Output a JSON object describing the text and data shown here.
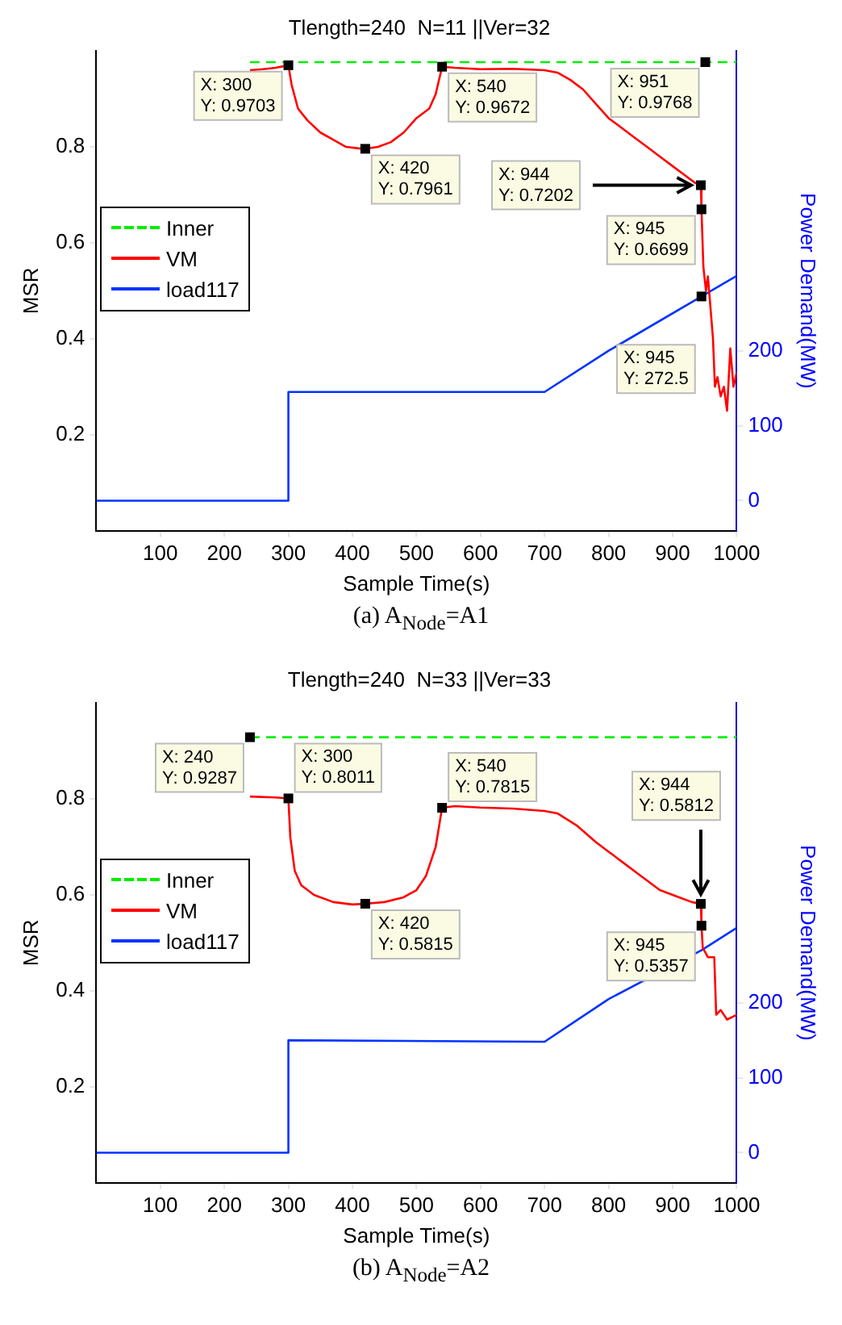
{
  "chart_data": [
    {
      "type": "line",
      "title": "Tlength=240  N=11 ||Ver=32",
      "xlabel": "Sample Time(s)",
      "ylabel": "MSR",
      "y2label": "Power Demand(MW)",
      "xlim": [
        0,
        1000
      ],
      "xticks": [
        100,
        200,
        300,
        400,
        500,
        600,
        700,
        800,
        900,
        1000
      ],
      "ylim": [
        0,
        1
      ],
      "yticks": [
        0.2,
        0.4,
        0.6,
        0.8
      ],
      "y2lim": [
        -40,
        600
      ],
      "y2ticks": [
        0,
        100,
        200
      ],
      "legend": "left",
      "series": [
        {
          "name": "Inner",
          "color": "#00ee00",
          "line_style": "dashed",
          "x": [
            240,
            1000
          ],
          "values": [
            0.9768,
            0.9768
          ]
        },
        {
          "name": "VM",
          "color": "#ff0000",
          "x": [
            240,
            260,
            280,
            300,
            305,
            315,
            330,
            350,
            370,
            390,
            410,
            420,
            440,
            460,
            480,
            500,
            520,
            530,
            540,
            560,
            600,
            650,
            700,
            720,
            740,
            760,
            780,
            800,
            820,
            840,
            860,
            880,
            900,
            920,
            935,
            944,
            945,
            948,
            952,
            955,
            960,
            963,
            966,
            970,
            975,
            980,
            985,
            990,
            995,
            1000
          ],
          "values": [
            0.96,
            0.962,
            0.965,
            0.9703,
            0.93,
            0.88,
            0.855,
            0.83,
            0.815,
            0.8,
            0.797,
            0.7961,
            0.8,
            0.81,
            0.83,
            0.86,
            0.88,
            0.91,
            0.9672,
            0.965,
            0.962,
            0.963,
            0.96,
            0.955,
            0.94,
            0.92,
            0.89,
            0.86,
            0.84,
            0.82,
            0.8,
            0.78,
            0.76,
            0.74,
            0.725,
            0.7202,
            0.6699,
            0.55,
            0.5,
            0.53,
            0.45,
            0.4,
            0.3,
            0.32,
            0.28,
            0.3,
            0.25,
            0.38,
            0.3,
            0.33
          ]
        },
        {
          "name": "load117",
          "color": "#0033ff",
          "axis": "y2",
          "x": [
            0,
            299,
            300,
            700,
            800,
            945,
            1000
          ],
          "values": [
            0,
            0,
            145,
            145,
            200,
            272.5,
            300
          ]
        }
      ],
      "annotations": [
        {
          "text": "X: 300\nY: 0.9703",
          "x": 300,
          "y": 0.9703
        },
        {
          "text": "X: 420\nY: 0.7961",
          "x": 420,
          "y": 0.7961
        },
        {
          "text": "X: 540\nY: 0.9672",
          "x": 540,
          "y": 0.9672
        },
        {
          "text": "X: 951\nY: 0.9768",
          "x": 951,
          "y": 0.9768
        },
        {
          "text": "X: 944\nY: 0.7202",
          "x": 944,
          "y": 0.7202
        },
        {
          "text": "X: 945\nY: 0.6699",
          "x": 945,
          "y": 0.6699
        },
        "X: 945\nY: 272.5",
        "(a)  A$_{Node}$=A1"
      ]
    },
    {
      "type": "line",
      "title": "Tlength=240  N=33 ||Ver=33",
      "xlabel": "Sample Time(s)",
      "ylabel": "MSR",
      "y2label": "Power Demand(MW)",
      "xlim": [
        0,
        1000
      ],
      "xticks": [
        100,
        200,
        300,
        400,
        500,
        600,
        700,
        800,
        900,
        1000
      ],
      "ylim": [
        0,
        1
      ],
      "yticks": [
        0.2,
        0.4,
        0.6,
        0.8
      ],
      "y2lim": [
        -40,
        600
      ],
      "y2ticks": [
        0,
        100,
        200
      ],
      "legend": "left",
      "series": [
        {
          "name": "Inner",
          "color": "#00ee00",
          "line_style": "dashed",
          "x": [
            240,
            1000
          ],
          "values": [
            0.9287,
            0.9287
          ]
        },
        {
          "name": "VM",
          "color": "#ff0000",
          "x": [
            240,
            280,
            300,
            303,
            310,
            320,
            340,
            370,
            400,
            420,
            450,
            480,
            500,
            515,
            530,
            540,
            560,
            600,
            650,
            700,
            720,
            750,
            780,
            800,
            820,
            850,
            880,
            910,
            930,
            944,
            945,
            947,
            955,
            965,
            968,
            975,
            985,
            1000
          ],
          "values": [
            0.805,
            0.803,
            0.8011,
            0.72,
            0.65,
            0.62,
            0.6,
            0.585,
            0.58,
            0.5815,
            0.585,
            0.595,
            0.61,
            0.64,
            0.7,
            0.7815,
            0.785,
            0.782,
            0.78,
            0.775,
            0.77,
            0.745,
            0.71,
            0.69,
            0.67,
            0.64,
            0.61,
            0.595,
            0.585,
            0.5812,
            0.5357,
            0.49,
            0.47,
            0.47,
            0.35,
            0.36,
            0.34,
            0.35
          ]
        },
        {
          "name": "load117",
          "color": "#0033ff",
          "axis": "y2",
          "x": [
            0,
            299,
            300,
            700,
            800,
            945,
            1000
          ],
          "values": [
            0,
            0,
            150,
            148,
            205,
            270,
            300
          ]
        }
      ],
      "annotations": [
        {
          "text": "X: 240\nY: 0.9287",
          "x": 240,
          "y": 0.9287
        },
        {
          "text": "X: 300\nY: 0.8011",
          "x": 300,
          "y": 0.8011
        },
        {
          "text": "X: 540\nY: 0.7815",
          "x": 540,
          "y": 0.7815
        },
        {
          "text": "X: 420\nY: 0.5815",
          "x": 420,
          "y": 0.5815
        },
        {
          "text": "X: 944\nY: 0.5812",
          "x": 944,
          "y": 0.5812
        },
        {
          "text": "X: 945\nY: 0.5357",
          "x": 945,
          "y": 0.5357
        },
        "(b)  A$_{Node}$=A2"
      ]
    }
  ]
}
